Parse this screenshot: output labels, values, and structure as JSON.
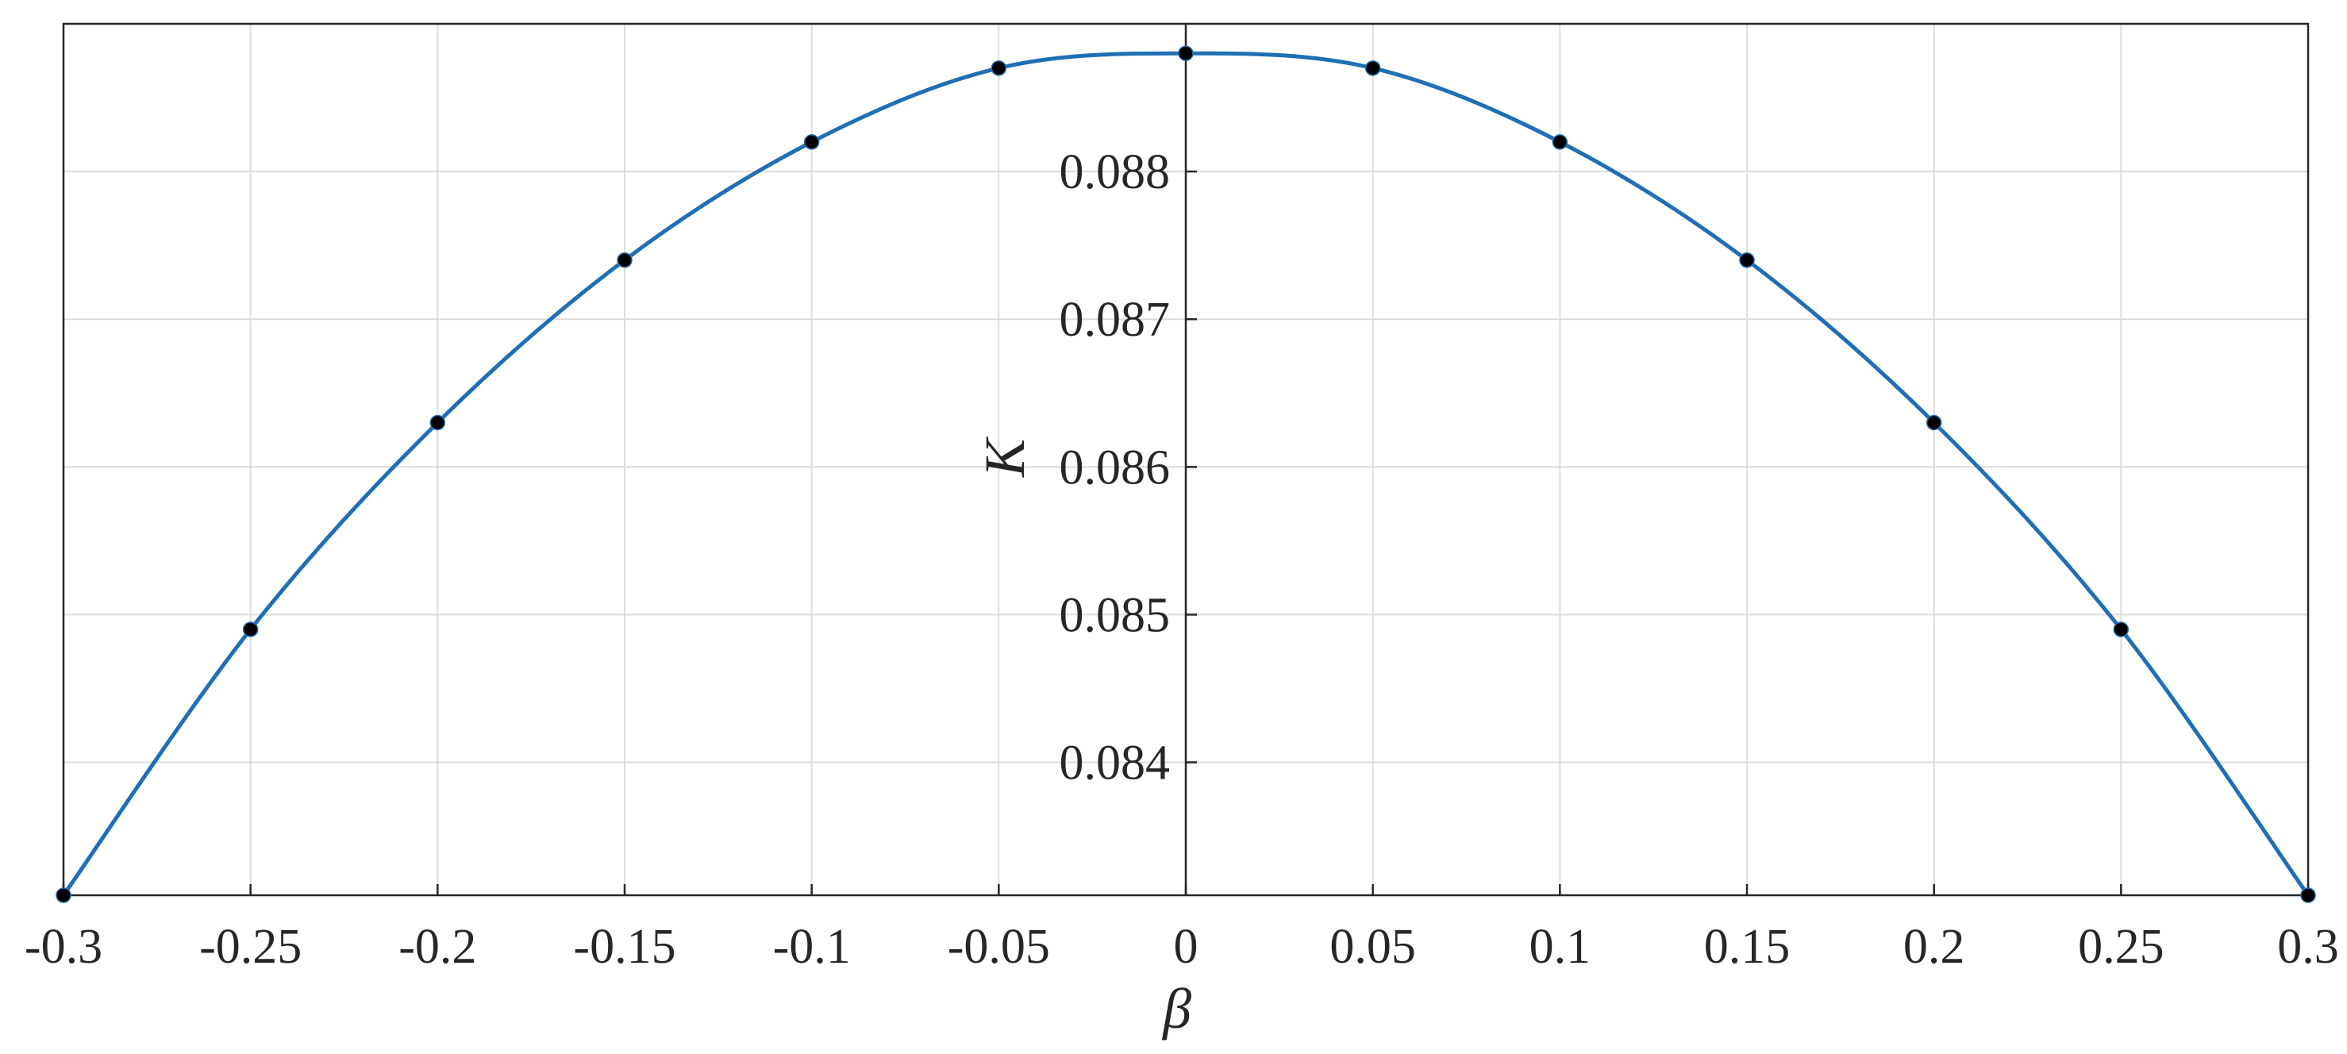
{
  "chart_data": {
    "type": "line",
    "title": "",
    "xlabel": "β",
    "ylabel": "K",
    "xlim": [
      -0.3,
      0.3
    ],
    "ylim": [
      0.0831,
      0.089
    ],
    "x_ticks": [
      -0.3,
      -0.25,
      -0.2,
      -0.15,
      -0.1,
      -0.05,
      0,
      0.05,
      0.1,
      0.15,
      0.2,
      0.25,
      0.3
    ],
    "x_tick_labels": [
      "-0.3",
      "-0.25",
      "-0.2",
      "-0.15",
      "-0.1",
      "-0.05",
      "0",
      "0.05",
      "0.1",
      "0.15",
      "0.2",
      "0.25",
      "0.3"
    ],
    "y_ticks": [
      0.084,
      0.085,
      0.086,
      0.087,
      0.088
    ],
    "y_tick_labels": [
      "0.084",
      "0.085",
      "0.086",
      "0.087",
      "0.088"
    ],
    "grid": true,
    "y_axis_location": "origin",
    "series": [
      {
        "color": "#1f6fb5",
        "marker_color": "#000000",
        "line": "smooth",
        "markers": true,
        "x": [
          -0.3,
          -0.25,
          -0.2,
          -0.15,
          -0.1,
          -0.05,
          0,
          0.05,
          0.1,
          0.15,
          0.2,
          0.25,
          0.3
        ],
        "y": [
          0.0831,
          0.0849,
          0.0863,
          0.0874,
          0.0882,
          0.0887,
          0.0888,
          0.0887,
          0.0882,
          0.0874,
          0.0863,
          0.0849,
          0.0831
        ]
      }
    ]
  }
}
